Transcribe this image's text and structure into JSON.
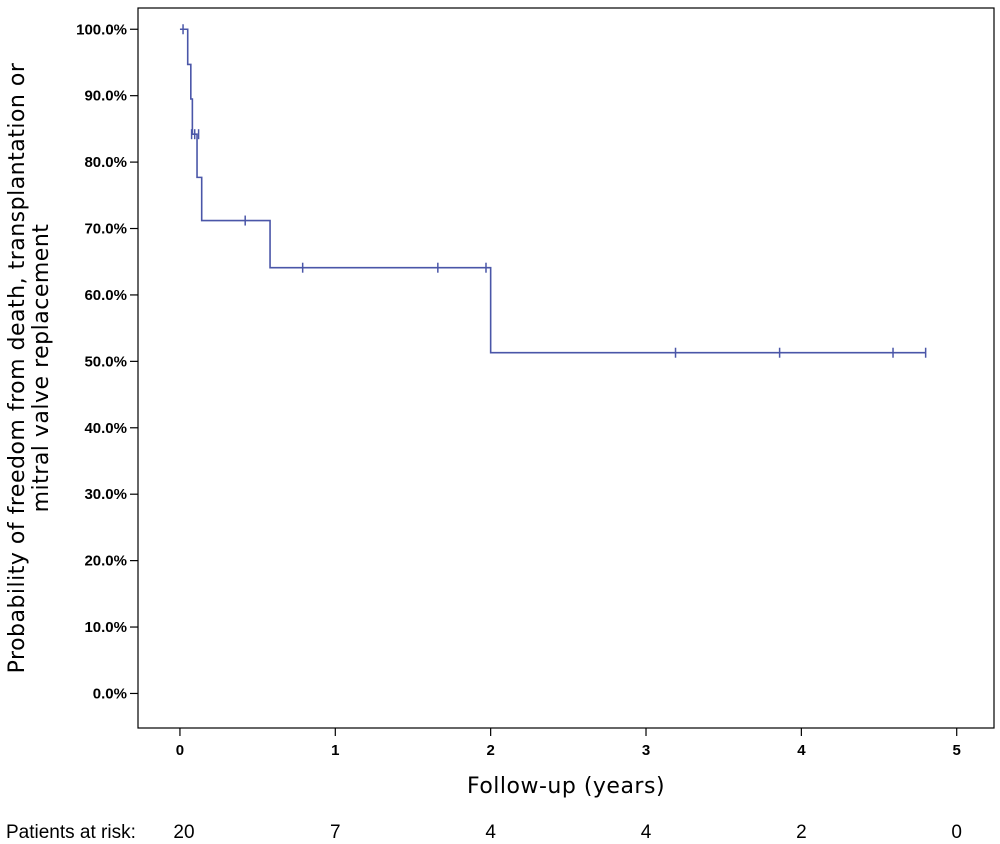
{
  "chart_data": {
    "type": "line",
    "subtype": "kaplan-meier",
    "title": "",
    "xlabel": "Follow-up (years)",
    "ylabel_lines": [
      "Probability of freedom from death, transplantation or",
      "mitral valve replacement"
    ],
    "xlim": [
      -0.27,
      5.24
    ],
    "ylim": [
      -0.052,
      1.032
    ],
    "x_ticks": [
      {
        "value": 0,
        "label": "0"
      },
      {
        "value": 1,
        "label": "1"
      },
      {
        "value": 2,
        "label": "2"
      },
      {
        "value": 3,
        "label": "3"
      },
      {
        "value": 4,
        "label": "4"
      },
      {
        "value": 5,
        "label": "5"
      }
    ],
    "y_ticks": [
      {
        "value": 0.0,
        "label": "0.0%"
      },
      {
        "value": 0.1,
        "label": "10.0%"
      },
      {
        "value": 0.2,
        "label": "20.0%"
      },
      {
        "value": 0.3,
        "label": "30.0%"
      },
      {
        "value": 0.4,
        "label": "40.0%"
      },
      {
        "value": 0.5,
        "label": "50.0%"
      },
      {
        "value": 0.6,
        "label": "60.0%"
      },
      {
        "value": 0.7,
        "label": "70.0%"
      },
      {
        "value": 0.8,
        "label": "80.0%"
      },
      {
        "value": 0.9,
        "label": "90.0%"
      },
      {
        "value": 1.0,
        "label": "100.0%"
      }
    ],
    "grid": false,
    "series": [
      {
        "color": "#4a56a8",
        "steps": [
          {
            "t": 0.0,
            "s": 1.0
          },
          {
            "t": 0.05,
            "s": 0.947
          },
          {
            "t": 0.07,
            "s": 0.895
          },
          {
            "t": 0.08,
            "s": 0.842
          },
          {
            "t": 0.11,
            "s": 0.777
          },
          {
            "t": 0.14,
            "s": 0.712
          },
          {
            "t": 0.58,
            "s": 0.641
          },
          {
            "t": 2.0,
            "s": 0.513
          }
        ],
        "end_t": 4.8,
        "censored": [
          {
            "t": 0.02,
            "s": 1.0
          },
          {
            "t": 0.075,
            "s": 0.842
          },
          {
            "t": 0.095,
            "s": 0.842
          },
          {
            "t": 0.12,
            "s": 0.842
          },
          {
            "t": 0.42,
            "s": 0.712
          },
          {
            "t": 0.79,
            "s": 0.641
          },
          {
            "t": 1.66,
            "s": 0.641
          },
          {
            "t": 1.97,
            "s": 0.641
          },
          {
            "t": 3.19,
            "s": 0.513
          },
          {
            "t": 3.86,
            "s": 0.513
          },
          {
            "t": 4.59,
            "s": 0.513
          },
          {
            "t": 4.8,
            "s": 0.513
          }
        ]
      }
    ]
  },
  "risk_table": {
    "label": "Patients at risk:",
    "values": [
      {
        "t": 0,
        "n": "20"
      },
      {
        "t": 1,
        "n": "7"
      },
      {
        "t": 2,
        "n": "4"
      },
      {
        "t": 3,
        "n": "4"
      },
      {
        "t": 4,
        "n": "2"
      },
      {
        "t": 5,
        "n": "0"
      }
    ]
  }
}
